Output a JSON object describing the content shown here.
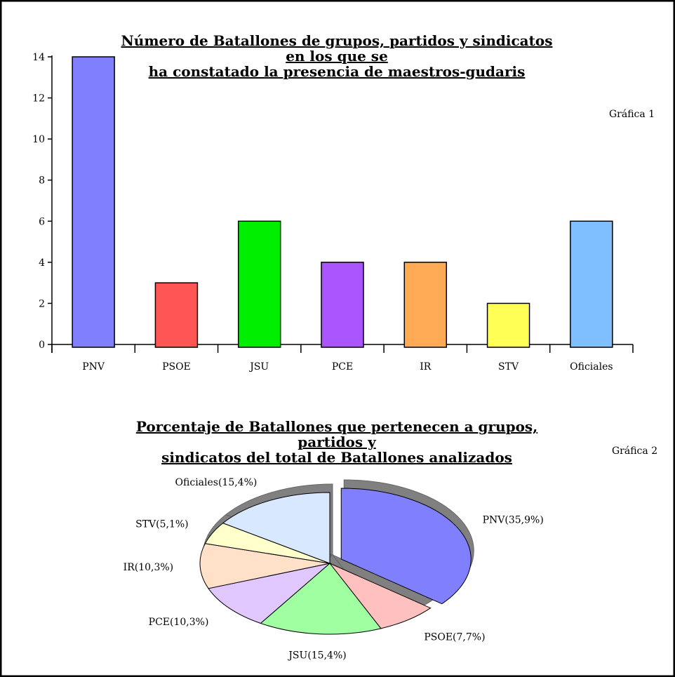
{
  "chart_data": [
    {
      "type": "bar",
      "title_lines": [
        "Número de Batallones de grupos, partidos y sindicatos en los que se",
        "ha constatado la presencia de maestros-gudaris"
      ],
      "note": "Gráfica 1",
      "categories": [
        "PNV",
        "PSOE",
        "JSU",
        "PCE",
        "IR",
        "STV",
        "Oficiales"
      ],
      "values": [
        14,
        3,
        6,
        4,
        4,
        2,
        6
      ],
      "colors": [
        "#8080ff",
        "#ff5555",
        "#00ee00",
        "#aa55ff",
        "#ffaa55",
        "#ffff55",
        "#80bfff"
      ],
      "ylim": [
        0,
        14
      ],
      "yticks": [
        "0",
        "2",
        "4",
        "6",
        "8",
        "10",
        "12",
        "14"
      ],
      "xlabel": "",
      "ylabel": "",
      "grid": false
    },
    {
      "type": "pie",
      "title_lines": [
        "Porcentaje de Batallones que pertenecen a grupos, partidos y",
        "sindicatos del total de Batallones analizados"
      ],
      "note": "Gráfica 2",
      "labels": [
        "PNV(35,9%)",
        "PSOE(7,7%)",
        "JSU(15,4%)",
        "PCE(10,3%)",
        "IR(10,3%)",
        "STV(5,1%)",
        "Oficiales(15,4%)"
      ],
      "values": [
        35.9,
        7.7,
        15.4,
        10.3,
        10.3,
        5.1,
        15.4
      ],
      "colors": [
        "#8080ff",
        "#ffc0c0",
        "#a0ffa0",
        "#e0c8ff",
        "#ffe0c8",
        "#ffffcc",
        "#d8e8ff"
      ],
      "exploded": [
        "PNV(35,9%)"
      ],
      "shadow_color": "#808080"
    }
  ]
}
